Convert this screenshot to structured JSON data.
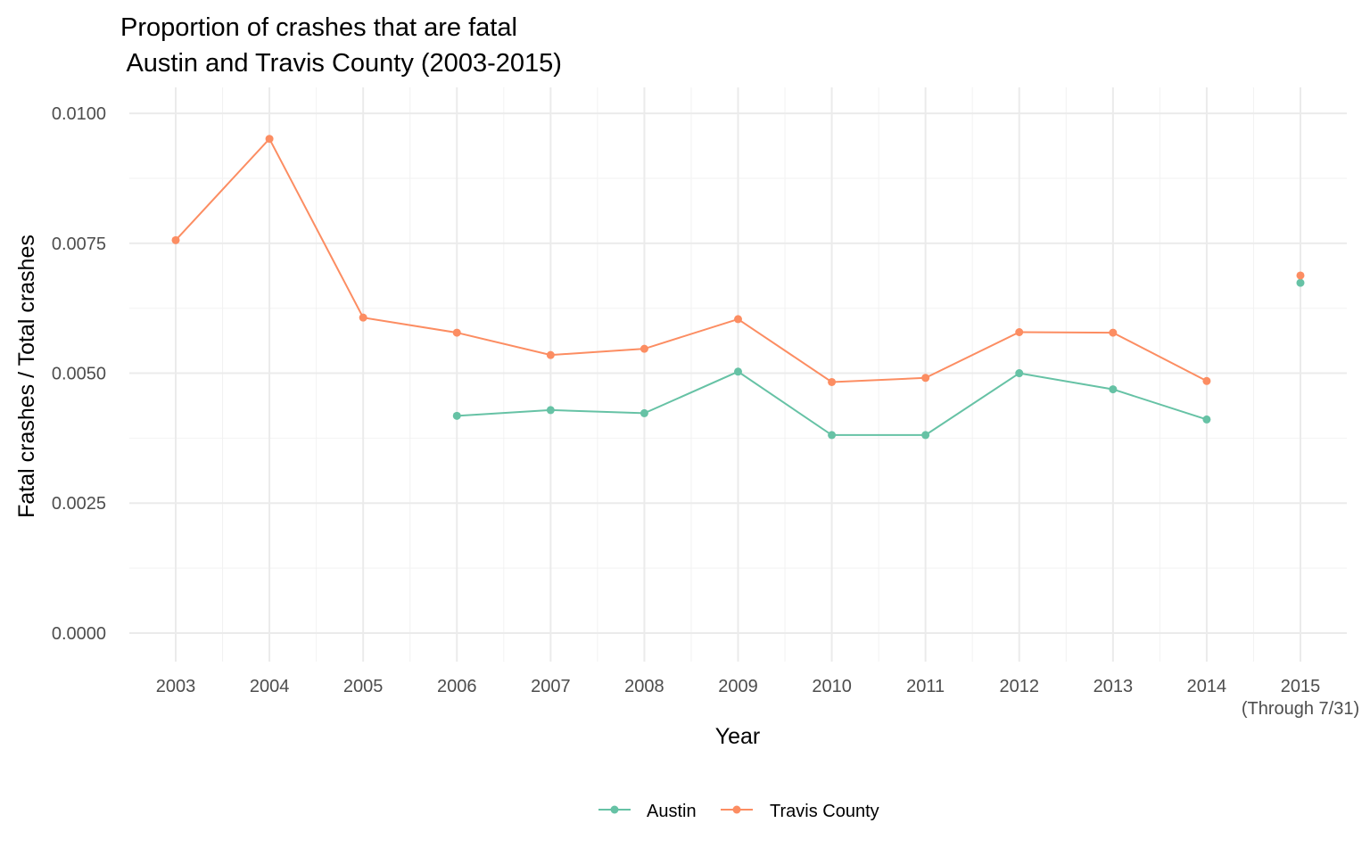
{
  "chart_data": {
    "type": "line",
    "title_line1": "Proportion of crashes that are fatal",
    "title_line2": " Austin and Travis County (2003-2015)",
    "xlabel": "Year",
    "ylabel": "Fatal crashes / Total crashes",
    "categories": [
      "2003",
      "2004",
      "2005",
      "2006",
      "2007",
      "2008",
      "2009",
      "2010",
      "2011",
      "2012",
      "2013",
      "2014",
      "2015"
    ],
    "category_sublabels": [
      "",
      "",
      "",
      "",
      "",
      "",
      "",
      "",
      "",
      "",
      "",
      "",
      "(Through 7/31)"
    ],
    "y_ticks": [
      0.0,
      0.0025,
      0.005,
      0.0075,
      0.01
    ],
    "y_tick_labels": [
      "0.0000",
      "0.0025",
      "0.0050",
      "0.0075",
      "0.0100"
    ],
    "ylim": [
      -0.00055,
      0.0105
    ],
    "grid": true,
    "legend_position": "bottom",
    "connect_last_point": false,
    "series": [
      {
        "name": "Austin",
        "color": "#66c2a5",
        "values": [
          null,
          null,
          null,
          0.00418,
          0.00429,
          0.00423,
          0.00503,
          0.00381,
          0.00381,
          0.005,
          0.00469,
          0.00411,
          0.00674
        ]
      },
      {
        "name": "Travis County",
        "color": "#fc8d62",
        "values": [
          0.00756,
          0.00951,
          0.00607,
          0.00578,
          0.00535,
          0.00547,
          0.00604,
          0.00483,
          0.00491,
          0.00579,
          0.00578,
          0.00485,
          0.00688
        ]
      }
    ]
  }
}
